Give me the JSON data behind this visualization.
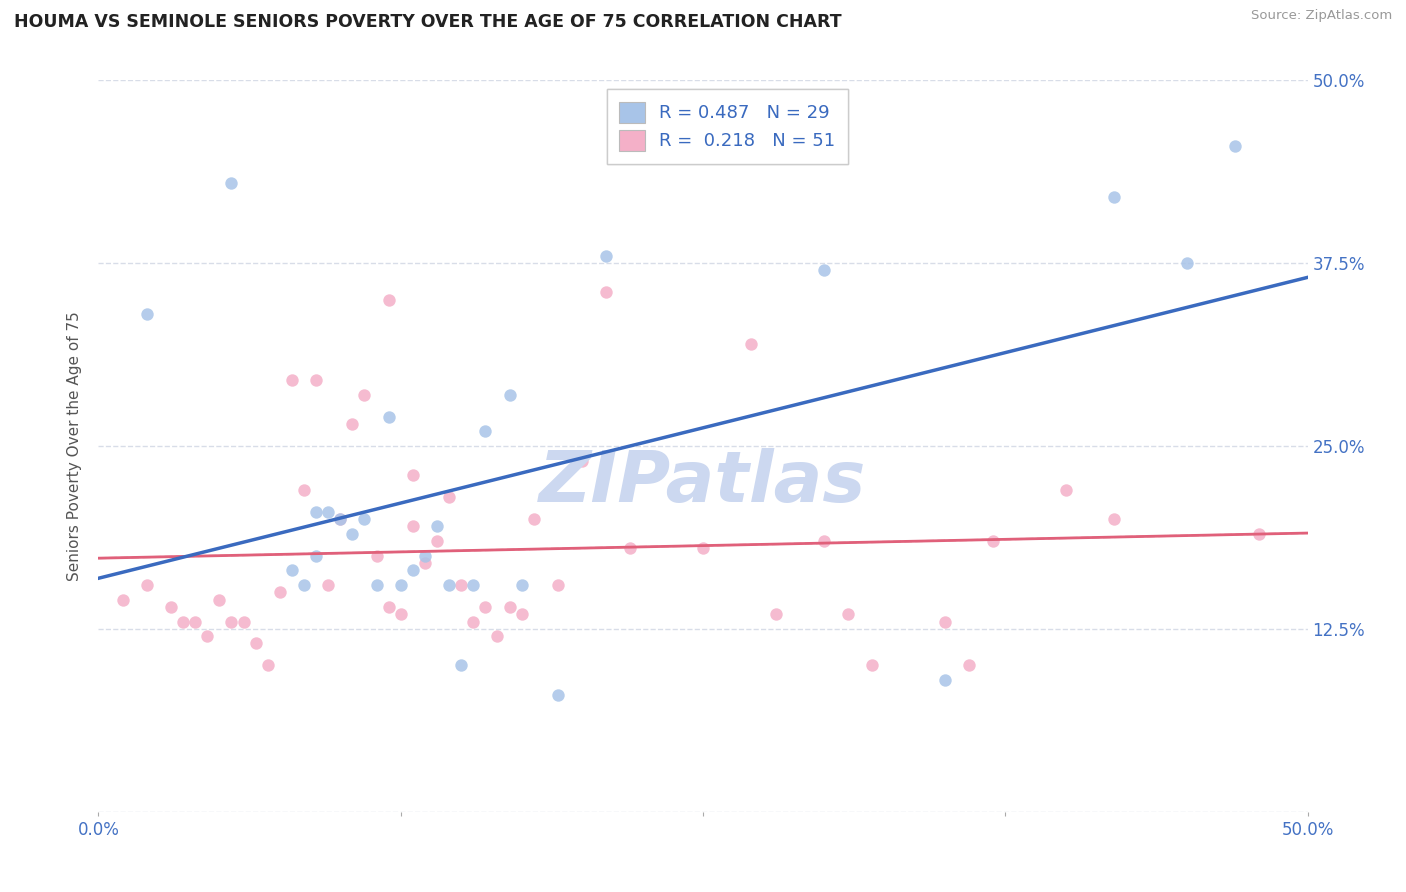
{
  "title": "HOUMA VS SEMINOLE SENIORS POVERTY OVER THE AGE OF 75 CORRELATION CHART",
  "source": "Source: ZipAtlas.com",
  "ylabel": "Seniors Poverty Over the Age of 75",
  "xlim": [
    0,
    0.5
  ],
  "ylim": [
    0,
    0.5
  ],
  "yticks": [
    0.0,
    0.125,
    0.25,
    0.375,
    0.5
  ],
  "ytick_labels_right": [
    "",
    "12.5%",
    "25.0%",
    "37.5%",
    "50.0%"
  ],
  "xticks": [
    0.0,
    0.125,
    0.25,
    0.375,
    0.5
  ],
  "xtick_labels": [
    "0.0%",
    "",
    "",
    "",
    "50.0%"
  ],
  "houma_R": 0.487,
  "houma_N": 29,
  "seminole_R": 0.218,
  "seminole_N": 51,
  "houma_color": "#a8c4e8",
  "seminole_color": "#f4b0c8",
  "houma_line_color": "#3a6abf",
  "seminole_line_color": "#e0607a",
  "seminole_dashed_color": "#e8909a",
  "watermark": "ZIPatlas",
  "watermark_color": "#ccd8f0",
  "background_color": "#ffffff",
  "grid_color": "#d8dde8",
  "title_color": "#222222",
  "axis_label_color": "#4472c4",
  "houma_x": [
    0.02,
    0.055,
    0.08,
    0.085,
    0.09,
    0.09,
    0.095,
    0.1,
    0.105,
    0.11,
    0.115,
    0.12,
    0.125,
    0.13,
    0.135,
    0.14,
    0.145,
    0.15,
    0.155,
    0.16,
    0.17,
    0.175,
    0.19,
    0.21,
    0.3,
    0.35,
    0.42,
    0.45,
    0.47
  ],
  "houma_y": [
    0.34,
    0.43,
    0.165,
    0.155,
    0.175,
    0.205,
    0.205,
    0.2,
    0.19,
    0.2,
    0.155,
    0.27,
    0.155,
    0.165,
    0.175,
    0.195,
    0.155,
    0.1,
    0.155,
    0.26,
    0.285,
    0.155,
    0.08,
    0.38,
    0.37,
    0.09,
    0.42,
    0.375,
    0.455
  ],
  "seminole_x": [
    0.01,
    0.02,
    0.03,
    0.035,
    0.04,
    0.045,
    0.05,
    0.055,
    0.06,
    0.065,
    0.07,
    0.075,
    0.08,
    0.085,
    0.09,
    0.095,
    0.1,
    0.105,
    0.11,
    0.115,
    0.12,
    0.125,
    0.13,
    0.135,
    0.14,
    0.145,
    0.15,
    0.155,
    0.16,
    0.165,
    0.17,
    0.175,
    0.18,
    0.19,
    0.2,
    0.21,
    0.22,
    0.25,
    0.27,
    0.28,
    0.3,
    0.31,
    0.32,
    0.35,
    0.36,
    0.37,
    0.4,
    0.42,
    0.48,
    0.12,
    0.13
  ],
  "seminole_y": [
    0.145,
    0.155,
    0.14,
    0.13,
    0.13,
    0.12,
    0.145,
    0.13,
    0.13,
    0.115,
    0.1,
    0.15,
    0.295,
    0.22,
    0.295,
    0.155,
    0.2,
    0.265,
    0.285,
    0.175,
    0.14,
    0.135,
    0.23,
    0.17,
    0.185,
    0.215,
    0.155,
    0.13,
    0.14,
    0.12,
    0.14,
    0.135,
    0.2,
    0.155,
    0.24,
    0.355,
    0.18,
    0.18,
    0.32,
    0.135,
    0.185,
    0.135,
    0.1,
    0.13,
    0.1,
    0.185,
    0.22,
    0.2,
    0.19,
    0.35,
    0.195
  ]
}
